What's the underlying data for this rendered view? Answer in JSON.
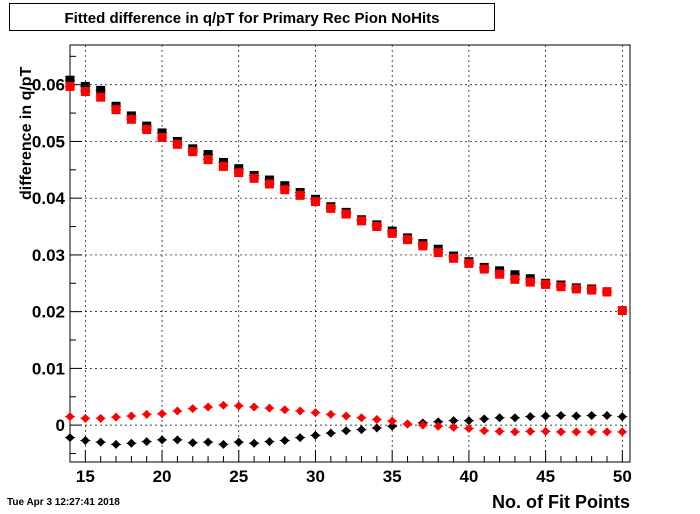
{
  "chart_data": {
    "type": "scatter",
    "title": "Fitted difference in q/pT for Primary Rec Pion NoHits",
    "xlabel": "No. of Fit Points",
    "ylabel": "difference in q/pT",
    "xlim": [
      14,
      50.5
    ],
    "ylim": [
      -0.0065,
      0.067
    ],
    "xticks": [
      15,
      20,
      25,
      30,
      35,
      40,
      45,
      50
    ],
    "yticks": [
      0,
      0.01,
      0.02,
      0.03,
      0.04,
      0.05,
      0.06
    ],
    "ytick_labels": [
      "0",
      "0.01",
      "0.02",
      "0.03",
      "0.04",
      "0.05",
      "0.06"
    ],
    "grid": true,
    "x": [
      14,
      15,
      16,
      17,
      18,
      19,
      20,
      21,
      22,
      23,
      24,
      25,
      26,
      27,
      28,
      29,
      30,
      31,
      32,
      33,
      34,
      35,
      36,
      37,
      38,
      39,
      40,
      41,
      42,
      43,
      44,
      45,
      46,
      47,
      48,
      49,
      50
    ],
    "series": [
      {
        "color": "#000000",
        "marker": "square",
        "values": [
          0.0608,
          0.0597,
          0.059,
          0.0562,
          0.0545,
          0.0527,
          0.0515,
          0.05,
          0.0487,
          0.0477,
          0.0463,
          0.0452,
          0.044,
          0.0432,
          0.0422,
          0.041,
          0.0398,
          0.0385,
          0.0375,
          0.0362,
          0.0353,
          0.0342,
          0.033,
          0.032,
          0.031,
          0.0298,
          0.0288,
          0.0278,
          0.0272,
          0.0265,
          0.0258,
          0.025,
          0.0247,
          0.0242,
          0.024,
          0.0235,
          null
        ]
      },
      {
        "color": "#ff0000",
        "marker": "square",
        "values": [
          0.0597,
          0.0588,
          0.0578,
          0.0556,
          0.0539,
          0.0521,
          0.0507,
          0.0495,
          0.0482,
          0.0468,
          0.0456,
          0.0445,
          0.0435,
          0.0425,
          0.0415,
          0.0405,
          0.0394,
          0.0382,
          0.0372,
          0.036,
          0.035,
          0.0338,
          0.0327,
          0.0316,
          0.0304,
          0.0294,
          0.0285,
          0.0275,
          0.0266,
          0.0257,
          0.0252,
          0.0248,
          0.0244,
          0.024,
          0.0238,
          0.0235,
          0.0202
        ]
      },
      {
        "color": "#000000",
        "marker": "diamond",
        "values": [
          -0.0022,
          -0.0027,
          -0.003,
          -0.0034,
          -0.0032,
          -0.0029,
          -0.0026,
          -0.0026,
          -0.0031,
          -0.003,
          -0.0034,
          -0.003,
          -0.0032,
          -0.0029,
          -0.0027,
          -0.0022,
          -0.0018,
          -0.0014,
          -0.001,
          -0.0008,
          -0.0005,
          -0.0002,
          0.0002,
          0.0004,
          0.0006,
          0.0008,
          0.0008,
          0.0011,
          0.0013,
          0.0013,
          0.0015,
          0.0016,
          0.0017,
          0.0016,
          0.0017,
          0.0017,
          0.0015
        ]
      },
      {
        "color": "#ff0000",
        "marker": "diamond",
        "values": [
          0.0015,
          0.0012,
          0.0012,
          0.0014,
          0.0016,
          0.0019,
          0.002,
          0.0025,
          0.0029,
          0.0032,
          0.0035,
          0.0034,
          0.0032,
          0.003,
          0.0027,
          0.0025,
          0.0022,
          0.0019,
          0.0016,
          0.0013,
          0.001,
          0.0007,
          0.0002,
          0.0,
          -0.0002,
          -0.0004,
          -0.0006,
          -0.001,
          -0.0011,
          -0.0012,
          -0.0011,
          -0.0011,
          -0.0012,
          -0.0012,
          -0.0012,
          -0.0012,
          -0.0012
        ]
      }
    ]
  },
  "timestamp": "Tue Apr  3 12:27:41 2018"
}
